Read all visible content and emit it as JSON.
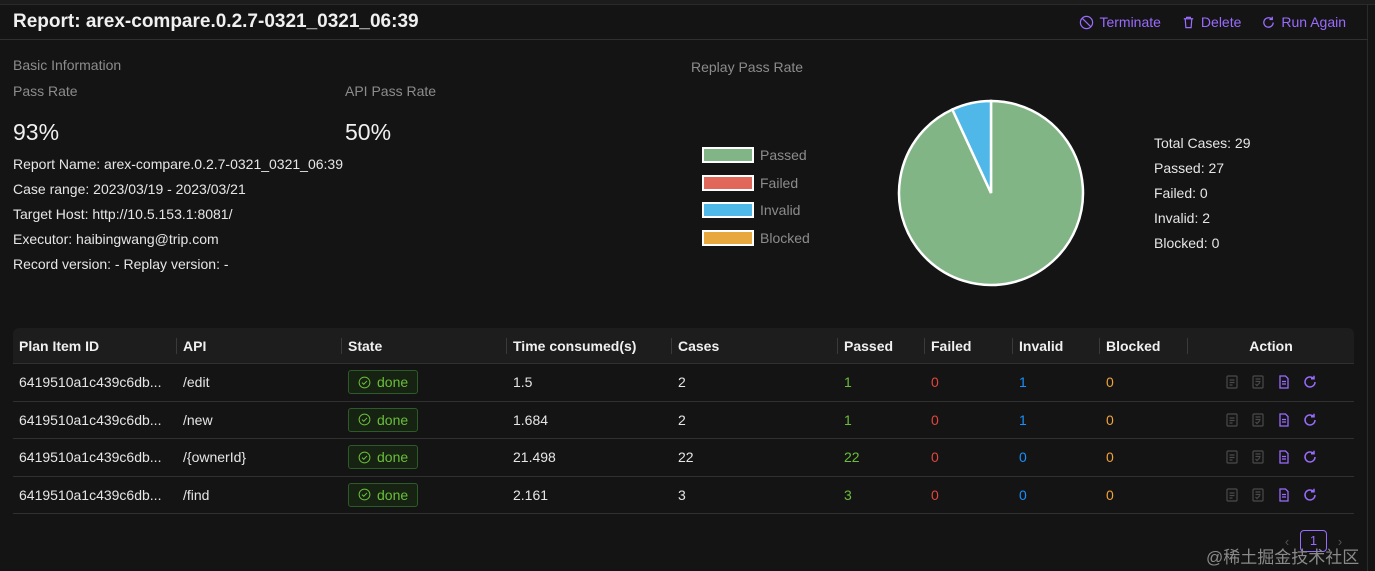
{
  "header": {
    "title": "Report: arex-compare.0.2.7-0321_0321_06:39",
    "terminate_label": "Terminate",
    "delete_label": "Delete",
    "run_again_label": "Run Again"
  },
  "basic": {
    "section_title": "Basic Information",
    "pass_rate_label": "Pass Rate",
    "pass_rate_value": "93%",
    "api_pass_rate_label": "API Pass Rate",
    "api_pass_rate_value": "50%",
    "report_name": "Report Name: arex-compare.0.2.7-0321_0321_06:39",
    "case_range": "Case range: 2023/03/19 - 2023/03/21",
    "target_host": "Target Host: http://10.5.153.1:8081/",
    "executor": "Executor: haibingwang@trip.com",
    "versions": "Record version: - Replay version: -"
  },
  "replay": {
    "title": "Replay Pass Rate",
    "legend": [
      {
        "label": "Passed",
        "color": "#82b586"
      },
      {
        "label": "Failed",
        "color": "#e0675a"
      },
      {
        "label": "Invalid",
        "color": "#4fb8e8"
      },
      {
        "label": "Blocked",
        "color": "#e9a83e"
      }
    ],
    "chart_data": {
      "type": "pie",
      "categories": [
        "Passed",
        "Failed",
        "Invalid",
        "Blocked"
      ],
      "values": [
        27,
        0,
        2,
        0
      ]
    },
    "stats": {
      "total": "Total Cases: 29",
      "passed": "Passed: 27",
      "failed": "Failed: 0",
      "invalid": "Invalid: 2",
      "blocked": "Blocked: 0"
    }
  },
  "table": {
    "columns": [
      "Plan Item ID",
      "API",
      "State",
      "Time consumed(s)",
      "Cases",
      "Passed",
      "Failed",
      "Invalid",
      "Blocked",
      "Action"
    ],
    "rows": [
      {
        "id": "6419510a1c439c6db...",
        "api": "/edit",
        "state": "done",
        "time": "1.5",
        "cases": "2",
        "passed": "1",
        "failed": "0",
        "invalid": "1",
        "blocked": "0"
      },
      {
        "id": "6419510a1c439c6db...",
        "api": "/new",
        "state": "done",
        "time": "1.684",
        "cases": "2",
        "passed": "1",
        "failed": "0",
        "invalid": "1",
        "blocked": "0"
      },
      {
        "id": "6419510a1c439c6db...",
        "api": "/{ownerId}",
        "state": "done",
        "time": "21.498",
        "cases": "22",
        "passed": "22",
        "failed": "0",
        "invalid": "0",
        "blocked": "0"
      },
      {
        "id": "6419510a1c439c6db...",
        "api": "/find",
        "state": "done",
        "time": "2.161",
        "cases": "3",
        "passed": "3",
        "failed": "0",
        "invalid": "0",
        "blocked": "0"
      }
    ]
  },
  "pagination": {
    "current_page": "1"
  },
  "watermark": "@稀土掘金技术社区",
  "colors": {
    "accent": "#9a6bff",
    "success": "#6abe39",
    "error": "#e0463d",
    "info": "#1890ff",
    "warning": "#f1a23c"
  }
}
